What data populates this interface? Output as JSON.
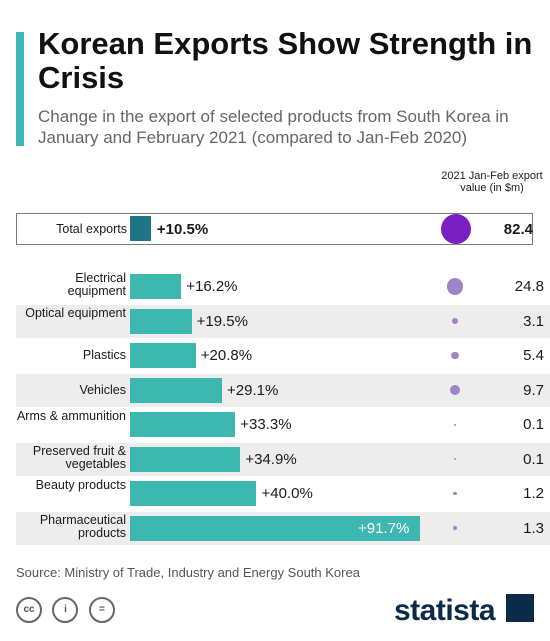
{
  "header": {
    "title": "Korean Exports Show Strength in Crisis",
    "subtitle": "Change in the export of selected products from South Korea in January and February 2021 (compared to Jan-Feb 2020)",
    "value_column_header": "2021 Jan-Feb export value (in $m)"
  },
  "chart_data": {
    "type": "bar",
    "orientation": "horizontal",
    "title": "Korean Exports Show Strength in Crisis",
    "subtitle": "Change in the export of selected products from South Korea in January and February 2021 (compared to Jan-Feb 2020)",
    "total": {
      "category": "Total exports",
      "change_label": "+10.5%",
      "change": 10.5,
      "value_label": "82.4",
      "value": 82.4
    },
    "categories": [
      "Electrical equipment",
      "Optical equipment",
      "Plastics",
      "Vehicles",
      "Arms & ammunition",
      "Preserved fruit & vegetables",
      "Beauty products",
      "Pharmaceutical products"
    ],
    "change_labels": [
      "+16.2%",
      "+19.5%",
      "+20.8%",
      "+29.1%",
      "+33.3%",
      "+34.9%",
      "+40.0%",
      "+91.7%"
    ],
    "change": [
      16.2,
      19.5,
      20.8,
      29.1,
      33.3,
      34.9,
      40.0,
      91.7
    ],
    "value_labels": [
      "24.8",
      "3.1",
      "5.4",
      "9.7",
      "0.1",
      "0.1",
      "1.2",
      "1.3"
    ],
    "export_value": [
      24.8,
      3.1,
      5.4,
      9.7,
      0.1,
      0.1,
      1.2,
      1.3
    ],
    "colors": {
      "bar": "#3db8b0",
      "total_bar": "#1f7486",
      "bubble": "#a083c9",
      "total_bubble": "#7a1fc1",
      "accent": "#3db8b0"
    }
  },
  "footer": {
    "source": "Source: Ministry of Trade, Industry and Energy South Korea",
    "license_icons": [
      "cc-icon",
      "by-icon",
      "nd-icon"
    ],
    "license_glyphs": [
      "cc",
      "i",
      "="
    ],
    "brand": "statista"
  }
}
